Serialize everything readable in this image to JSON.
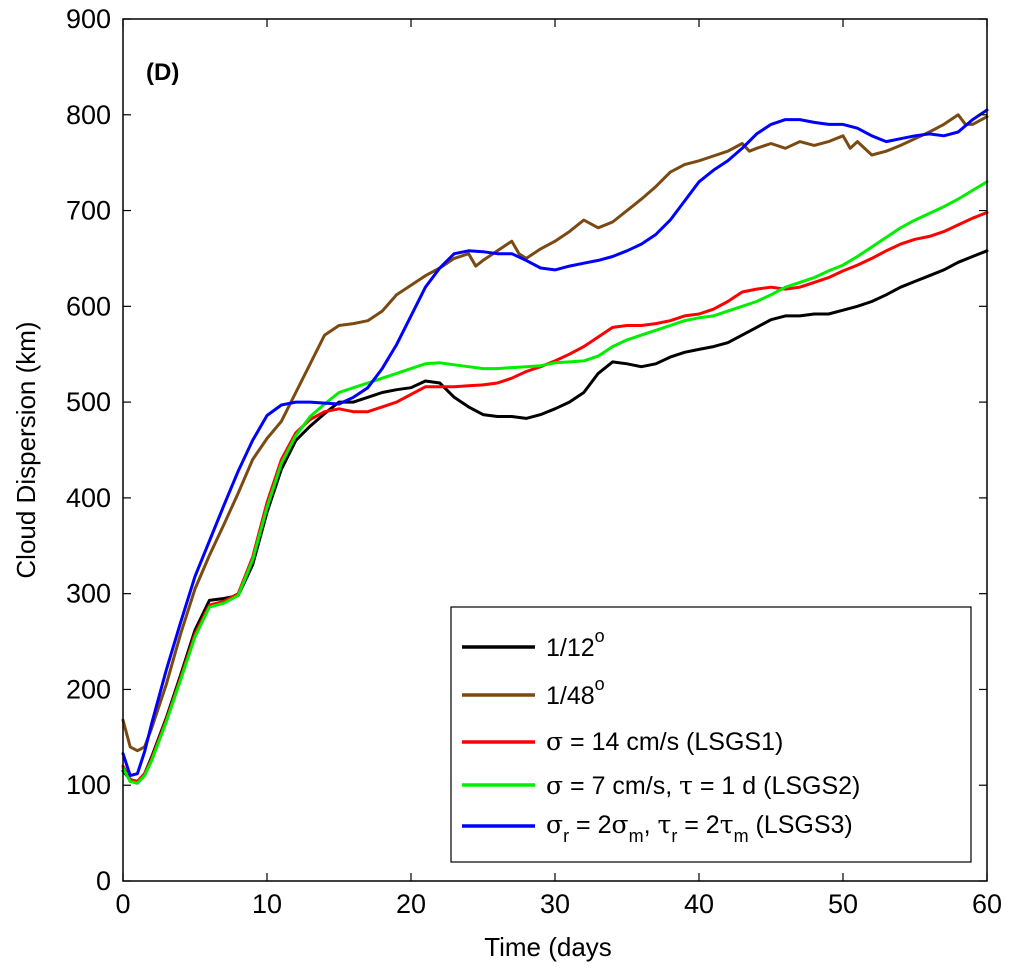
{
  "chart_data": {
    "type": "line",
    "panel_label": "(D)",
    "xlabel": "Time (days",
    "ylabel": "Cloud Dispersion (km)",
    "xlim": [
      0,
      60
    ],
    "ylim": [
      0,
      900
    ],
    "xticks": [
      "0",
      "10",
      "20",
      "30",
      "40",
      "50",
      "60"
    ],
    "yticks": [
      "0",
      "100",
      "200",
      "300",
      "400",
      "500",
      "600",
      "700",
      "800",
      "900"
    ],
    "grid": false,
    "legend_position": "bottom-right",
    "series": [
      {
        "name": "1/12°",
        "color": "#000000",
        "x": [
          0,
          0.5,
          1,
          1.5,
          2,
          3,
          4,
          5,
          6,
          7,
          8,
          9,
          10,
          11,
          12,
          13,
          14,
          15,
          16,
          17,
          18,
          19,
          20,
          21,
          22,
          23,
          24,
          25,
          26,
          27,
          28,
          29,
          30,
          31,
          32,
          33,
          34,
          35,
          36,
          37,
          38,
          39,
          40,
          41,
          42,
          43,
          44,
          45,
          46,
          47,
          48,
          49,
          50,
          51,
          52,
          53,
          54,
          55,
          56,
          57,
          58,
          59,
          60
        ],
        "y": [
          115,
          106,
          103,
          112,
          130,
          170,
          215,
          262,
          293,
          295,
          298,
          330,
          385,
          430,
          460,
          475,
          488,
          500,
          500,
          505,
          510,
          513,
          515,
          522,
          520,
          505,
          495,
          487,
          485,
          485,
          483,
          487,
          493,
          500,
          510,
          530,
          542,
          540,
          537,
          540,
          547,
          552,
          555,
          558,
          562,
          570,
          578,
          586,
          590,
          590,
          592,
          592,
          596,
          600,
          605,
          612,
          620,
          626,
          632,
          638,
          646,
          652,
          658
        ]
      },
      {
        "name": "1/48°",
        "color": "#7B4A12",
        "x": [
          0,
          0.5,
          1,
          1.5,
          2,
          3,
          4,
          5,
          6,
          7,
          8,
          9,
          10,
          11,
          12,
          13,
          14,
          15,
          16,
          17,
          18,
          19,
          20,
          21,
          22,
          23,
          24,
          24.5,
          25,
          26,
          27,
          27.5,
          28,
          29,
          30,
          31,
          32,
          33,
          34,
          35,
          36,
          37,
          38,
          39,
          40,
          41,
          42,
          43,
          43.5,
          44,
          45,
          46,
          47,
          48,
          49,
          50,
          50.5,
          51,
          52,
          53,
          54,
          55,
          56,
          57,
          58,
          58.5,
          59,
          60
        ],
        "y": [
          168,
          140,
          136,
          140,
          160,
          205,
          258,
          305,
          340,
          372,
          405,
          440,
          462,
          480,
          510,
          540,
          570,
          580,
          582,
          585,
          595,
          612,
          622,
          632,
          640,
          650,
          655,
          642,
          648,
          658,
          668,
          655,
          650,
          660,
          668,
          678,
          690,
          682,
          688,
          700,
          712,
          725,
          740,
          748,
          752,
          757,
          762,
          770,
          762,
          765,
          770,
          765,
          772,
          768,
          772,
          778,
          765,
          772,
          758,
          762,
          768,
          775,
          782,
          790,
          800,
          790,
          790,
          798
        ]
      },
      {
        "name": "σ = 14 cm/s (LSGS1)",
        "color": "#FF0000",
        "x": [
          0,
          0.5,
          1,
          1.5,
          2,
          3,
          4,
          5,
          6,
          7,
          8,
          9,
          10,
          11,
          12,
          13,
          14,
          15,
          16,
          17,
          18,
          19,
          20,
          21,
          22,
          23,
          24,
          25,
          26,
          27,
          28,
          29,
          30,
          31,
          32,
          33,
          34,
          35,
          36,
          37,
          38,
          39,
          40,
          41,
          42,
          43,
          44,
          45,
          46,
          47,
          48,
          49,
          50,
          51,
          52,
          53,
          54,
          55,
          56,
          57,
          58,
          59,
          60
        ],
        "y": [
          120,
          106,
          104,
          112,
          128,
          168,
          212,
          258,
          288,
          292,
          300,
          338,
          395,
          440,
          468,
          482,
          490,
          493,
          490,
          490,
          495,
          500,
          508,
          516,
          516,
          516,
          517,
          518,
          520,
          525,
          532,
          537,
          543,
          550,
          558,
          568,
          578,
          580,
          580,
          582,
          585,
          590,
          592,
          597,
          605,
          615,
          618,
          620,
          618,
          620,
          625,
          630,
          637,
          643,
          650,
          658,
          665,
          670,
          673,
          678,
          685,
          692,
          698
        ]
      },
      {
        "name": "σ = 7 cm/s, τ = 1 d (LSGS2)",
        "color": "#00EE00",
        "x": [
          0,
          0.5,
          1,
          1.5,
          2,
          3,
          4,
          5,
          6,
          7,
          8,
          9,
          10,
          11,
          12,
          13,
          14,
          15,
          16,
          17,
          18,
          19,
          20,
          21,
          22,
          23,
          24,
          25,
          26,
          27,
          28,
          29,
          30,
          31,
          32,
          33,
          34,
          35,
          36,
          37,
          38,
          39,
          40,
          41,
          42,
          43,
          44,
          45,
          46,
          47,
          48,
          49,
          50,
          51,
          52,
          53,
          54,
          55,
          56,
          57,
          58,
          59,
          60
        ],
        "y": [
          118,
          104,
          102,
          110,
          126,
          166,
          210,
          255,
          286,
          290,
          298,
          335,
          390,
          436,
          465,
          485,
          498,
          510,
          515,
          520,
          525,
          530,
          535,
          540,
          541,
          539,
          537,
          535,
          535,
          536,
          537,
          538,
          541,
          542,
          543,
          548,
          558,
          565,
          570,
          575,
          580,
          585,
          588,
          590,
          595,
          600,
          605,
          612,
          620,
          625,
          630,
          637,
          643,
          652,
          662,
          672,
          682,
          690,
          697,
          704,
          712,
          721,
          730
        ]
      },
      {
        "name": "σr = 2σm, τr = 2τm (LSGS3)",
        "color": "#0000FF",
        "x": [
          0,
          0.5,
          1,
          1.5,
          2,
          3,
          4,
          5,
          6,
          7,
          8,
          9,
          10,
          11,
          12,
          13,
          14,
          15,
          16,
          17,
          18,
          19,
          20,
          21,
          22,
          23,
          24,
          25,
          26,
          27,
          28,
          29,
          30,
          31,
          32,
          33,
          34,
          35,
          36,
          37,
          38,
          39,
          40,
          41,
          42,
          43,
          44,
          45,
          46,
          47,
          48,
          49,
          50,
          51,
          52,
          53,
          54,
          55,
          56,
          57,
          58,
          59,
          60
        ],
        "y": [
          133,
          110,
          112,
          135,
          165,
          220,
          270,
          318,
          355,
          392,
          428,
          460,
          486,
          497,
          500,
          500,
          499,
          498,
          505,
          515,
          535,
          560,
          590,
          620,
          640,
          655,
          658,
          657,
          655,
          655,
          648,
          640,
          638,
          642,
          645,
          648,
          652,
          658,
          665,
          675,
          690,
          710,
          730,
          742,
          752,
          765,
          780,
          790,
          795,
          795,
          792,
          790,
          790,
          786,
          778,
          772,
          775,
          778,
          780,
          778,
          782,
          795,
          805
        ]
      }
    ]
  },
  "legend": {
    "e1_label": "1/12",
    "e1_sup": "o",
    "e2_label": "1/48",
    "e2_sup": "o",
    "e3_sym": "σ",
    "e3_text": " = 14 cm/s (LSGS1)",
    "e4_sym1": "σ",
    "e4_text1": " = 7 cm/s, ",
    "e4_sym2": "τ",
    "e4_text2": " = 1 d (LSGS2)",
    "e5_sym1": "σ",
    "e5_sub1": "r",
    "e5_text1": " = 2",
    "e5_sym2": "σ",
    "e5_sub2": "m",
    "e5_text2": ", ",
    "e5_sym3": "τ",
    "e5_sub3": "r",
    "e5_text3": " = 2",
    "e5_sym4": "τ",
    "e5_sub4": "m",
    "e5_text4": " (LSGS3)"
  }
}
